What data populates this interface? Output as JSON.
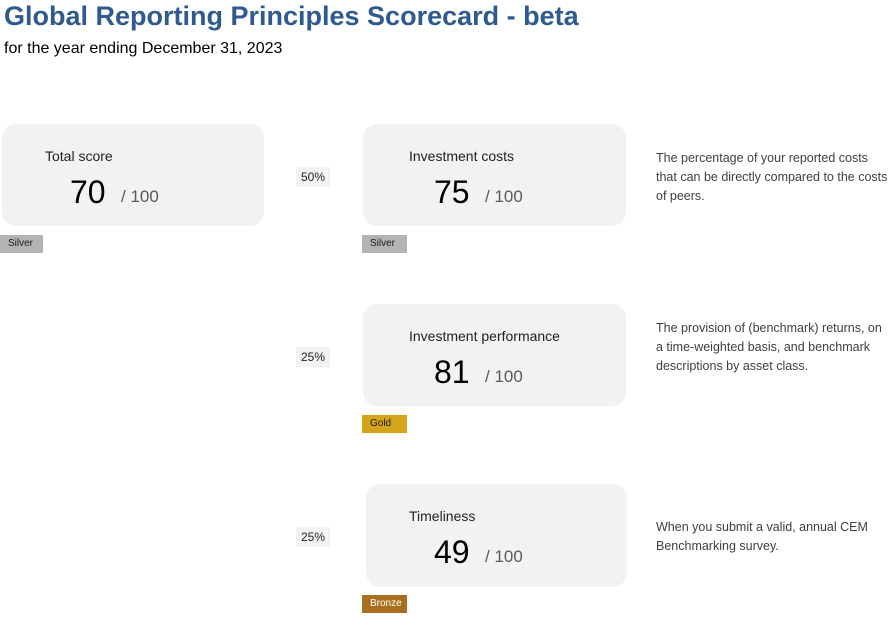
{
  "header": {
    "title": "Global Reporting Principles Scorecard - beta",
    "subtitle": "for the year ending December 31, 2023"
  },
  "total": {
    "label": "Total score",
    "score": "70",
    "max": "/ 100",
    "tier": "Silver"
  },
  "components": [
    {
      "weight": "50%",
      "label": "Investment costs",
      "score": "75",
      "max": "/ 100",
      "tier": "Silver",
      "description": "The percentage of your reported costs that can be directly compared to the costs of peers."
    },
    {
      "weight": "25%",
      "label": "Investment performance",
      "score": "81",
      "max": "/ 100",
      "tier": "Gold",
      "description": "The provision of (benchmark) returns, on a time-weighted basis, and benchmark descriptions by asset class."
    },
    {
      "weight": "25%",
      "label": "Timeliness",
      "score": "49",
      "max": "/ 100",
      "tier": "Bronze",
      "description": "When you submit a valid, annual CEM Benchmarking survey."
    }
  ],
  "colors": {
    "title": "#2f5a8f",
    "card_bg": "#f2f2f2",
    "silver": "#b3b3b3",
    "gold": "#d4a51a",
    "bronze": "#a8701e"
  }
}
